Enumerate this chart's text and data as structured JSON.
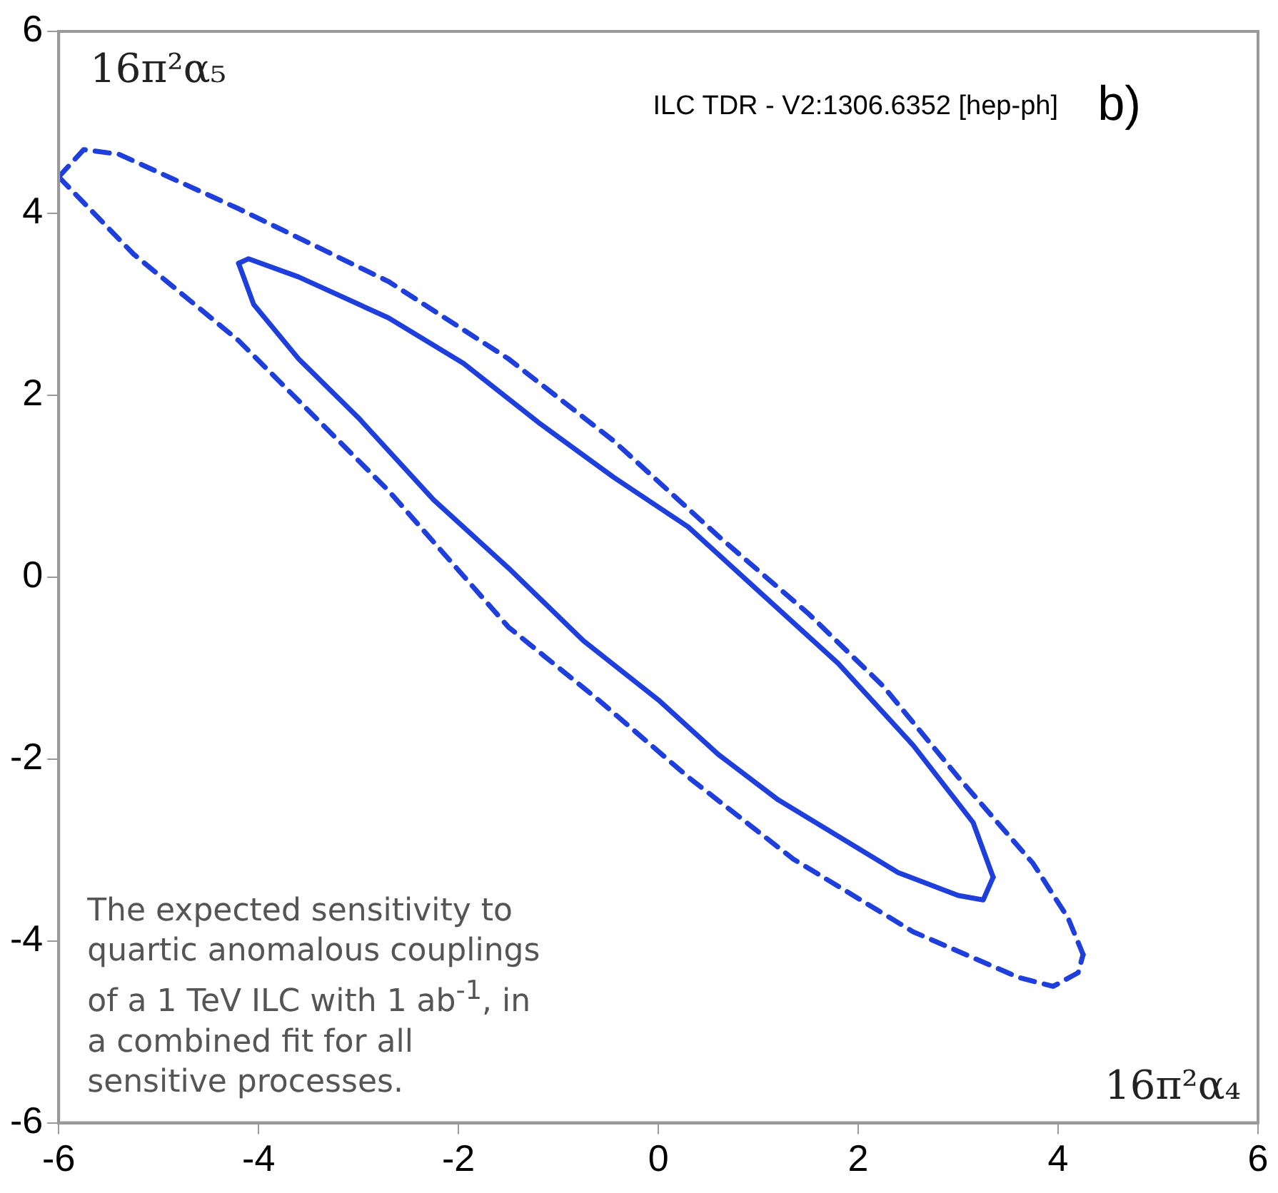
{
  "chart_data": {
    "type": "line",
    "xlabel": "16π²α₄",
    "ylabel": "16π²α₅",
    "annotations": [
      "ILC TDR - V2:1306.6352 [hep-ph]",
      "b)",
      "The expected sensitivity to quartic anomalous couplings of a 1 TeV ILC with 1 ab$^{-1}$, in a combined fit for all sensitive processes."
    ],
    "xlim": [
      -6,
      6
    ],
    "ylim": [
      -6,
      6
    ],
    "xticks": [
      -6,
      -4,
      -2,
      0,
      2,
      4,
      6
    ],
    "yticks": [
      -6,
      -4,
      -2,
      0,
      2,
      4,
      6
    ],
    "grid": false,
    "legend": false,
    "marker": "none",
    "series": [
      {
        "color": "#1f3fdd",
        "line_style": "solid",
        "x": [
          -4.2,
          -4.1,
          -3.6,
          -2.7,
          -1.95,
          -1.2,
          -0.45,
          0.3,
          1.05,
          1.8,
          2.55,
          3.15,
          3.35
        ],
        "values": [
          3.45,
          3.5,
          3.3,
          2.85,
          2.35,
          1.7,
          1.1,
          0.55,
          -0.2,
          -0.95,
          -1.85,
          -2.7,
          -3.3
        ]
      },
      {
        "color": "#1f3fdd",
        "line_style": "solid",
        "x": [
          -4.2,
          -4.05,
          -3.6,
          -3.0,
          -2.25,
          -1.5,
          -0.75,
          0,
          0.6,
          1.2,
          1.65,
          2.4,
          3.0,
          3.25,
          3.35
        ],
        "values": [
          3.45,
          3.0,
          2.4,
          1.75,
          0.85,
          0.1,
          -0.7,
          -1.35,
          -1.95,
          -2.45,
          -2.75,
          -3.25,
          -3.5,
          -3.55,
          -3.3
        ]
      },
      {
        "color": "#1f3fdd",
        "line_style": "dashed",
        "x": [
          -6,
          -5.75,
          -5.4,
          -4.2,
          -2.7,
          -1.5,
          -0.45,
          0.6,
          1.5,
          2.25,
          3.0,
          3.75,
          4.1,
          4.25
        ],
        "values": [
          4.4,
          4.7,
          4.65,
          4.05,
          3.25,
          2.4,
          1.5,
          0.45,
          -0.4,
          -1.2,
          -2.2,
          -3.15,
          -3.75,
          -4.15
        ]
      },
      {
        "color": "#1f3fdd",
        "line_style": "dashed",
        "x": [
          -6,
          -5.25,
          -4.2,
          -2.7,
          -1.5,
          -0.6,
          0.3,
          1.35,
          2.55,
          3.6,
          3.95,
          4.2,
          4.25
        ],
        "values": [
          4.4,
          3.55,
          2.6,
          0.95,
          -0.55,
          -1.35,
          -2.2,
          -3.1,
          -3.9,
          -4.4,
          -4.5,
          -4.35,
          -4.15
        ]
      }
    ]
  }
}
